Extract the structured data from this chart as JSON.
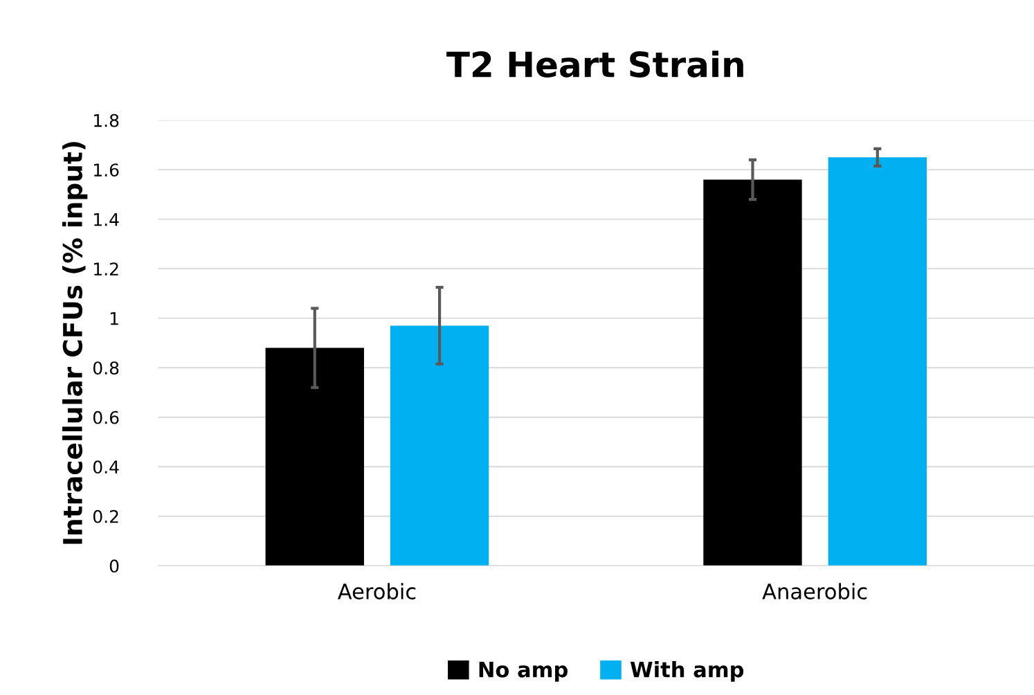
{
  "chart_data": {
    "type": "bar",
    "title": "T2 Heart Strain",
    "ylabel": "Intracellular CFUs (% input)",
    "categories": [
      "Aerobic",
      "Anaerobic"
    ],
    "series": [
      {
        "name": "No amp",
        "color": "#000000",
        "values": [
          0.88,
          1.56
        ],
        "errors": [
          0.16,
          0.08
        ]
      },
      {
        "name": "With amp",
        "color": "#00b0f0",
        "values": [
          0.97,
          1.65
        ],
        "errors": [
          0.155,
          0.035
        ]
      }
    ],
    "ylim": [
      0,
      1.8
    ],
    "yticks": [
      0,
      {
        "value": 0.2,
        "label": "0.2"
      },
      {
        "value": 0.4,
        "label": "0.4"
      },
      {
        "value": 0.6,
        "label": "0.6"
      },
      {
        "value": 0.8,
        "label": "0.8"
      },
      1,
      {
        "value": 1.2,
        "label": "1.2"
      },
      {
        "value": 1.4,
        "label": "1.4"
      },
      {
        "value": 1.6,
        "label": "1.6"
      },
      {
        "value": 1.8,
        "label": "1.8"
      }
    ],
    "grid": "y",
    "legend": "bottom"
  }
}
